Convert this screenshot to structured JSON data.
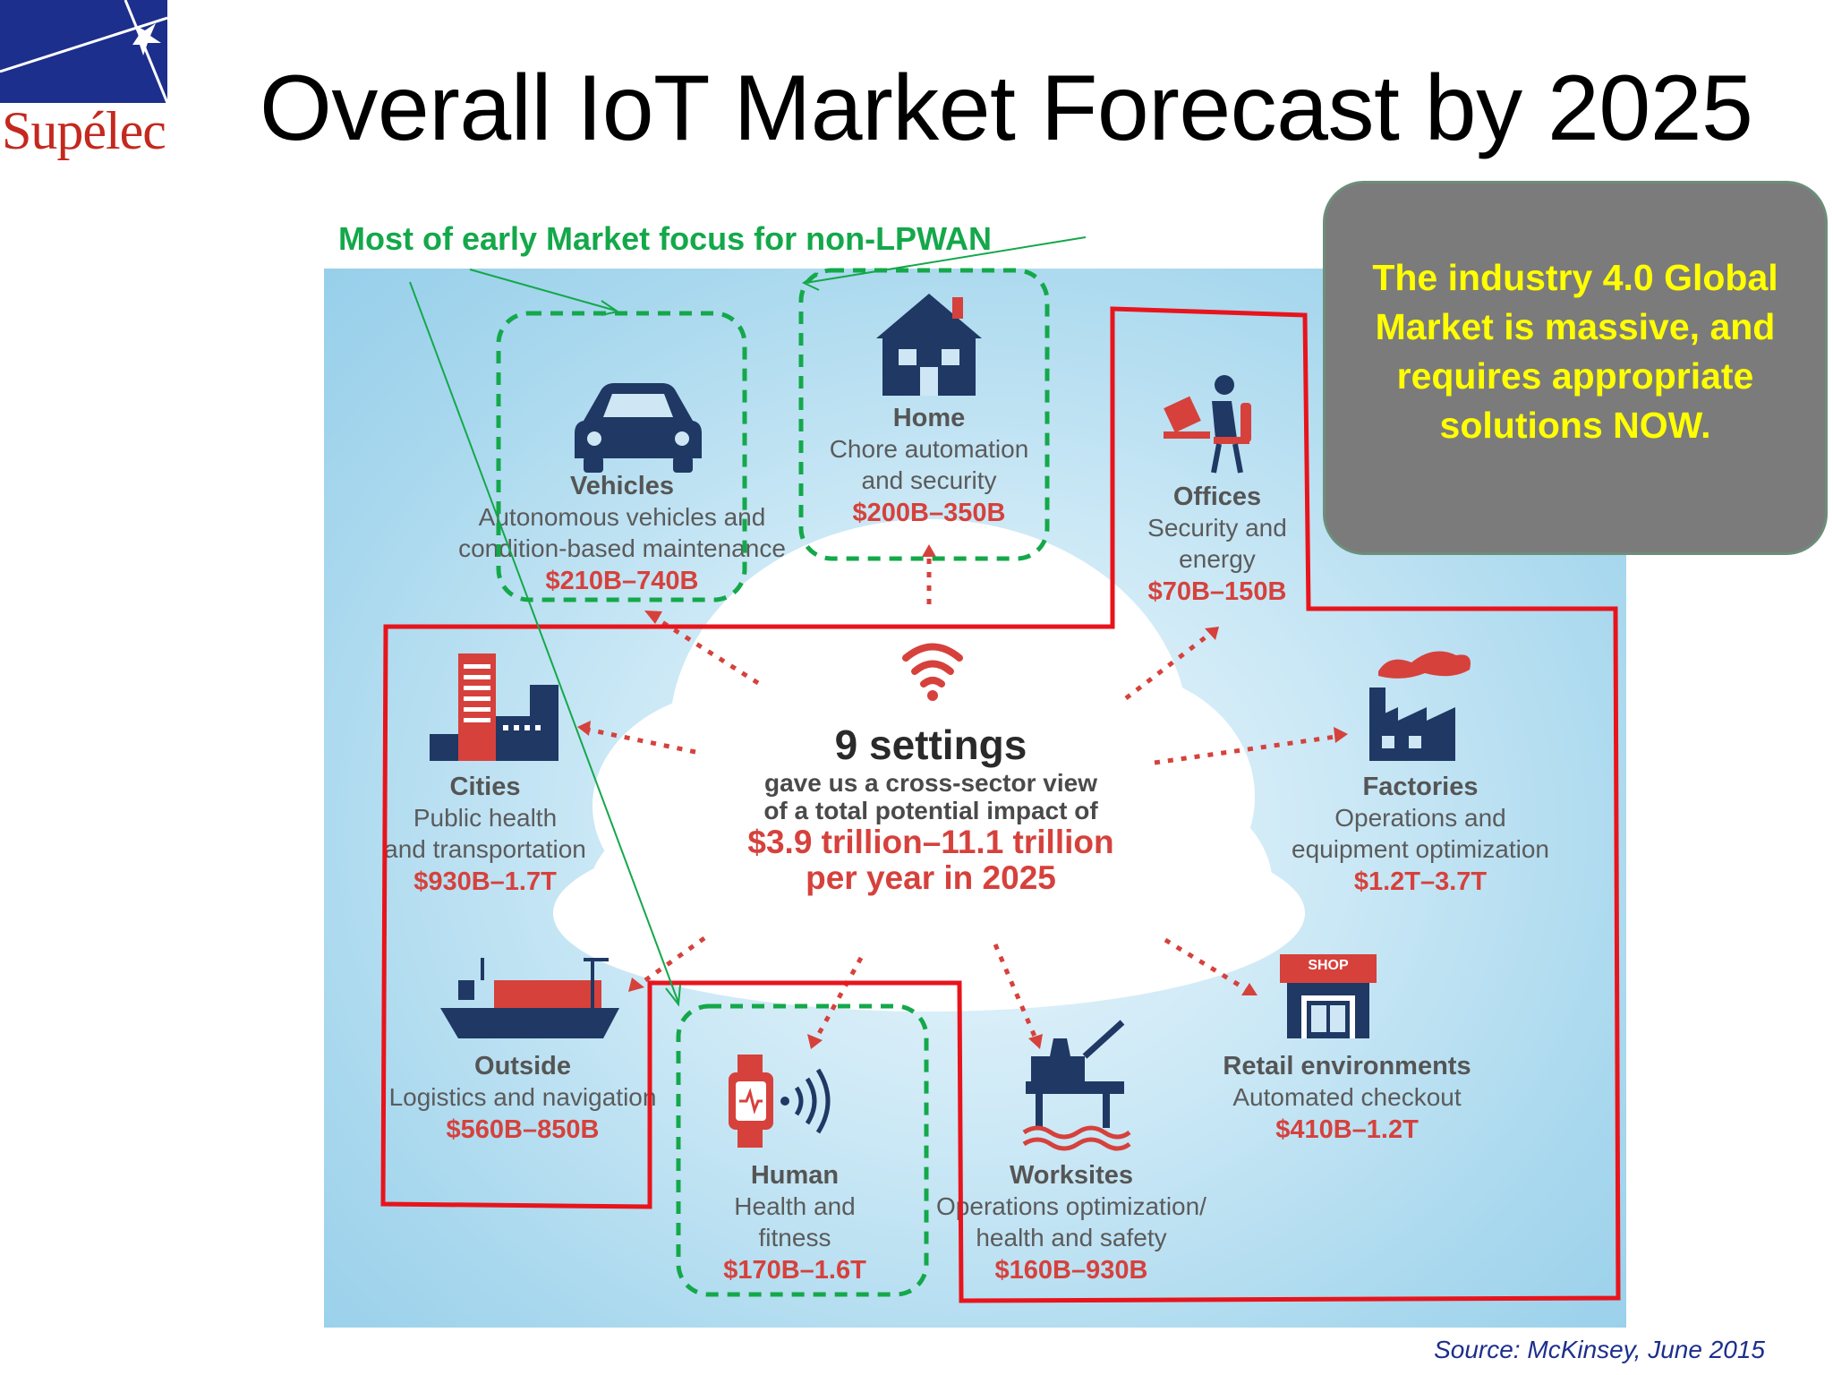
{
  "logo": {
    "text": "Supélec"
  },
  "title": "Overall IoT Market Forecast by 2025",
  "annotation": "Most of early Market focus for non-LPWAN",
  "callout": "The industry 4.0 Global Market is massive, and requires appropriate solutions NOW.",
  "center": {
    "count": "9 settings",
    "line1": "gave us a cross-sector view",
    "line2": "of a total potential impact of",
    "range": "$3.9 trillion–11.1 trillion",
    "period": "per year in 2025"
  },
  "sectors": [
    {
      "name": "Vehicles",
      "desc1": "Autonomous vehicles and",
      "desc2": "condition-based maintenance",
      "value": "$210B–740B"
    },
    {
      "name": "Home",
      "desc1": "Chore automation",
      "desc2": "and security",
      "value": "$200B–350B"
    },
    {
      "name": "Offices",
      "desc1": "Security and",
      "desc2": "energy",
      "value": "$70B–150B"
    },
    {
      "name": "Cities",
      "desc1": "Public health",
      "desc2": "and transportation",
      "value": "$930B–1.7T"
    },
    {
      "name": "Factories",
      "desc1": "Operations and",
      "desc2": "equipment optimization",
      "value": "$1.2T–3.7T"
    },
    {
      "name": "Outside",
      "desc1": "Logistics and navigation",
      "desc2": "",
      "value": "$560B–850B"
    },
    {
      "name": "Human",
      "desc1": "Health and",
      "desc2": "fitness",
      "value": "$170B–1.6T"
    },
    {
      "name": "Worksites",
      "desc1": "Operations optimization/",
      "desc2": "health and safety",
      "value": "$160B–930B"
    },
    {
      "name": "Retail environments",
      "desc1": "Automated checkout",
      "desc2": "",
      "value": "$410B–1.2T"
    }
  ],
  "shop_sign": "SHOP",
  "source": "Source: McKinsey, June 2015",
  "colors": {
    "accent_red": "#d6413c",
    "navy": "#1f3864",
    "highlight_green": "#14a84a",
    "outline_red": "#e8141c",
    "callout_text": "#ffff00",
    "callout_bg": "#7b7b7b"
  }
}
